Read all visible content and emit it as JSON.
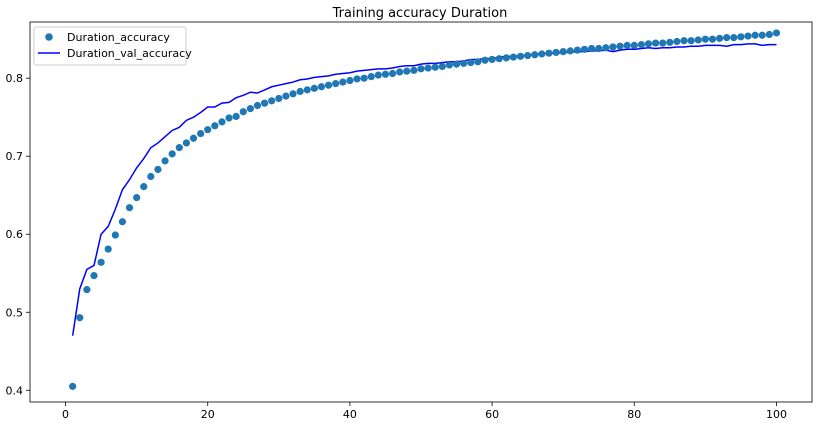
{
  "chart_data": {
    "type": "line",
    "title": "Training accuracy Duration",
    "xlabel": "",
    "ylabel": "",
    "xlim": [
      -5,
      105
    ],
    "ylim": [
      0.385,
      0.872
    ],
    "x_ticks": [
      0,
      20,
      40,
      60,
      80,
      100
    ],
    "y_ticks": [
      0.4,
      0.5,
      0.6,
      0.7,
      0.8
    ],
    "grid": false,
    "legend_position": "top-left",
    "series": [
      {
        "name": "Duration_accuracy",
        "style": "scatter",
        "color": "#1f77b4",
        "x": [
          1,
          2,
          3,
          4,
          5,
          6,
          7,
          8,
          9,
          10,
          11,
          12,
          13,
          14,
          15,
          16,
          17,
          18,
          19,
          20,
          21,
          22,
          23,
          24,
          25,
          26,
          27,
          28,
          29,
          30,
          31,
          32,
          33,
          34,
          35,
          36,
          37,
          38,
          39,
          40,
          41,
          42,
          43,
          44,
          45,
          46,
          47,
          48,
          49,
          50,
          51,
          52,
          53,
          54,
          55,
          56,
          57,
          58,
          59,
          60,
          61,
          62,
          63,
          64,
          65,
          66,
          67,
          68,
          69,
          70,
          71,
          72,
          73,
          74,
          75,
          76,
          77,
          78,
          79,
          80,
          81,
          82,
          83,
          84,
          85,
          86,
          87,
          88,
          89,
          90,
          91,
          92,
          93,
          94,
          95,
          96,
          97,
          98,
          99,
          100
        ],
        "values": [
          0.405,
          0.493,
          0.529,
          0.547,
          0.564,
          0.581,
          0.599,
          0.616,
          0.634,
          0.647,
          0.661,
          0.674,
          0.683,
          0.694,
          0.703,
          0.711,
          0.717,
          0.723,
          0.729,
          0.734,
          0.739,
          0.744,
          0.749,
          0.751,
          0.757,
          0.761,
          0.765,
          0.768,
          0.771,
          0.774,
          0.777,
          0.78,
          0.783,
          0.785,
          0.787,
          0.789,
          0.791,
          0.793,
          0.795,
          0.797,
          0.799,
          0.8,
          0.802,
          0.804,
          0.805,
          0.806,
          0.808,
          0.809,
          0.81,
          0.812,
          0.813,
          0.814,
          0.815,
          0.817,
          0.818,
          0.819,
          0.82,
          0.821,
          0.823,
          0.824,
          0.825,
          0.826,
          0.827,
          0.828,
          0.829,
          0.83,
          0.831,
          0.832,
          0.833,
          0.834,
          0.835,
          0.836,
          0.837,
          0.838,
          0.838,
          0.839,
          0.84,
          0.841,
          0.842,
          0.842,
          0.843,
          0.844,
          0.845,
          0.845,
          0.846,
          0.847,
          0.848,
          0.848,
          0.849,
          0.85,
          0.85,
          0.851,
          0.852,
          0.852,
          0.853,
          0.854,
          0.855,
          0.855,
          0.856,
          0.858
        ]
      },
      {
        "name": "Duration_val_accuracy",
        "style": "line",
        "color": "#0000ff",
        "x": [
          1,
          2,
          3,
          4,
          5,
          6,
          7,
          8,
          9,
          10,
          11,
          12,
          13,
          14,
          15,
          16,
          17,
          18,
          19,
          20,
          21,
          22,
          23,
          24,
          25,
          26,
          27,
          28,
          29,
          30,
          31,
          32,
          33,
          34,
          35,
          36,
          37,
          38,
          39,
          40,
          41,
          42,
          43,
          44,
          45,
          46,
          47,
          48,
          49,
          50,
          51,
          52,
          53,
          54,
          55,
          56,
          57,
          58,
          59,
          60,
          61,
          62,
          63,
          64,
          65,
          66,
          67,
          68,
          69,
          70,
          71,
          72,
          73,
          74,
          75,
          76,
          77,
          78,
          79,
          80,
          81,
          82,
          83,
          84,
          85,
          86,
          87,
          88,
          89,
          90,
          91,
          92,
          93,
          94,
          95,
          96,
          97,
          98,
          99,
          100
        ],
        "values": [
          0.47,
          0.53,
          0.555,
          0.56,
          0.6,
          0.61,
          0.632,
          0.657,
          0.67,
          0.685,
          0.697,
          0.711,
          0.717,
          0.725,
          0.733,
          0.737,
          0.746,
          0.75,
          0.756,
          0.763,
          0.763,
          0.768,
          0.769,
          0.775,
          0.778,
          0.782,
          0.781,
          0.785,
          0.789,
          0.791,
          0.793,
          0.795,
          0.798,
          0.799,
          0.801,
          0.802,
          0.803,
          0.805,
          0.806,
          0.807,
          0.809,
          0.81,
          0.811,
          0.812,
          0.812,
          0.813,
          0.815,
          0.816,
          0.816,
          0.818,
          0.819,
          0.819,
          0.82,
          0.821,
          0.821,
          0.822,
          0.824,
          0.824,
          0.825,
          0.825,
          0.827,
          0.828,
          0.828,
          0.829,
          0.829,
          0.831,
          0.831,
          0.832,
          0.832,
          0.833,
          0.833,
          0.834,
          0.834,
          0.835,
          0.835,
          0.836,
          0.834,
          0.836,
          0.837,
          0.837,
          0.838,
          0.839,
          0.838,
          0.839,
          0.839,
          0.84,
          0.84,
          0.841,
          0.841,
          0.842,
          0.842,
          0.842,
          0.841,
          0.843,
          0.843,
          0.844,
          0.844,
          0.842,
          0.843,
          0.843
        ]
      }
    ]
  }
}
